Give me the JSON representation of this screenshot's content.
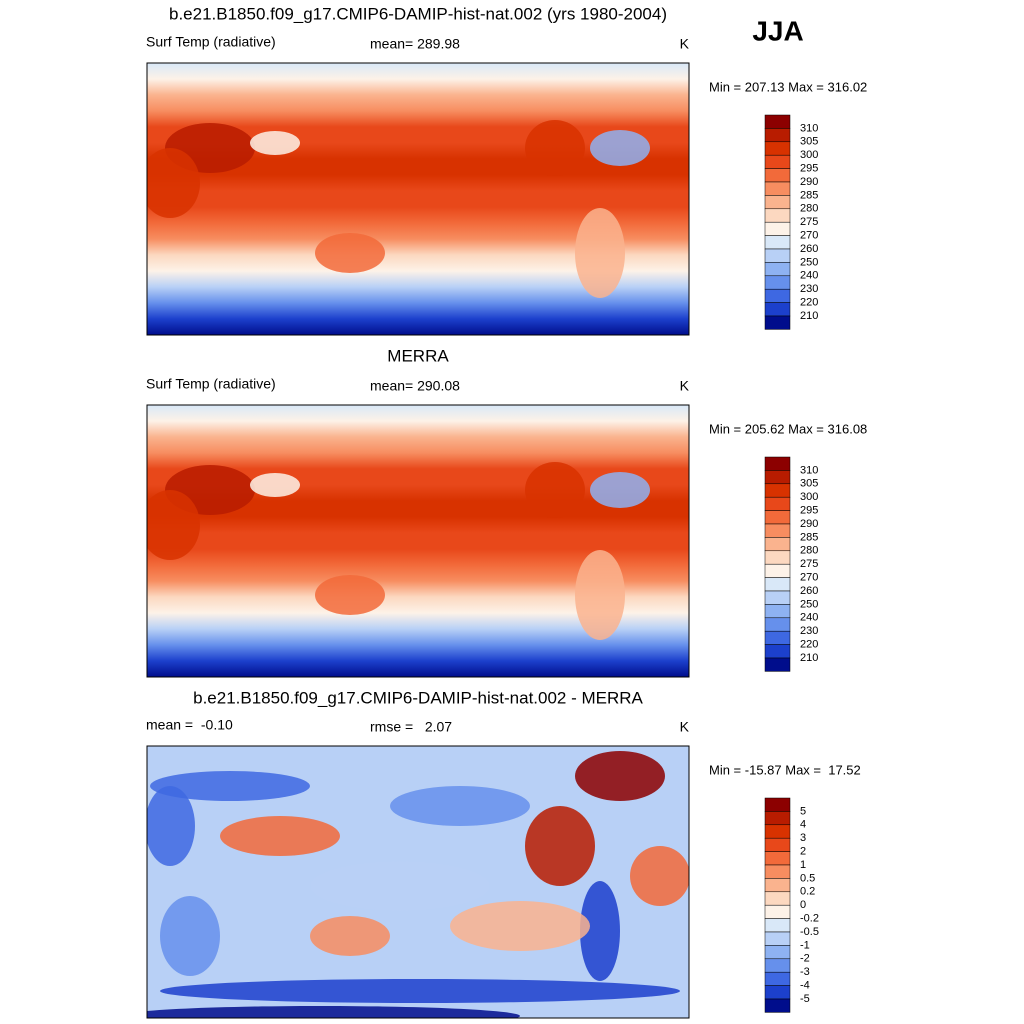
{
  "header": {
    "season": "JJA"
  },
  "panels": [
    {
      "title": "b.e21.B1850.f09_g17.CMIP6-DAMIP-hist-nat.002 (yrs 1980-2004)",
      "left": "Surf Temp (radiative)",
      "center": "mean= 289.98",
      "right": "K",
      "minmax": "Min = 207.13 Max = 316.02",
      "colorbar": {
        "labels": [
          "310",
          "305",
          "300",
          "295",
          "290",
          "285",
          "280",
          "275",
          "270",
          "260",
          "250",
          "240",
          "230",
          "220",
          "210"
        ]
      }
    },
    {
      "title": "MERRA",
      "left": "Surf Temp (radiative)",
      "center": "mean= 290.08",
      "right": "K",
      "minmax": "Min = 205.62 Max = 316.08",
      "colorbar": {
        "labels": [
          "310",
          "305",
          "300",
          "295",
          "290",
          "285",
          "280",
          "275",
          "270",
          "260",
          "250",
          "240",
          "230",
          "220",
          "210"
        ]
      }
    },
    {
      "title": "b.e21.B1850.f09_g17.CMIP6-DAMIP-hist-nat.002 - MERRA",
      "left": "mean =  -0.10",
      "center": "rmse =   2.07",
      "right": "K",
      "minmax": "Min = -15.87 Max =  17.52",
      "colorbar": {
        "labels": [
          "5",
          "4",
          "3",
          "2",
          "1",
          "0.5",
          "0.2",
          "0",
          "-0.2",
          "-0.5",
          "-1",
          "-2",
          "-3",
          "-4",
          "-5"
        ]
      }
    }
  ]
}
